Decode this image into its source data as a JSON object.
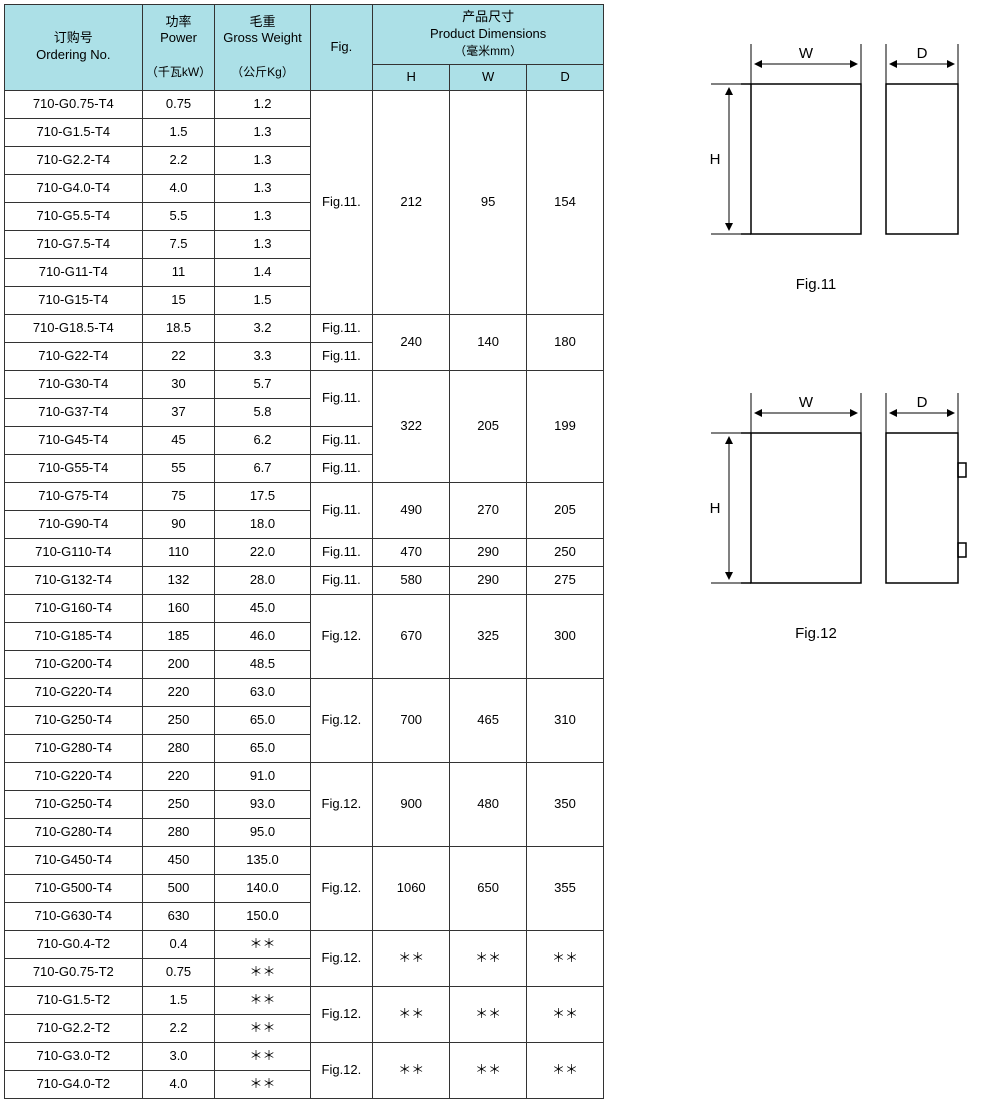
{
  "headers": {
    "ordering": {
      "zh": "订购号",
      "en": "Ordering No."
    },
    "power": {
      "zh": "功率",
      "en": "Power",
      "unit": "（千瓦kW）"
    },
    "gross": {
      "zh": "毛重",
      "en": "Gross Weight",
      "unit": "（公斤Kg）"
    },
    "fig": "Fig.",
    "dims": {
      "zh": "产品尺寸",
      "en": "Product Dimensions",
      "unit": "（毫米mm）"
    },
    "H": "H",
    "W": "W",
    "D": "D"
  },
  "groups": [
    {
      "fig": "Fig.11.",
      "figRow": 8,
      "H": "212",
      "W": "95",
      "D": "154",
      "dimRow": 8,
      "rows": [
        {
          "order": "710-G0.75-T4",
          "power": "0.75",
          "gw": "1.2"
        },
        {
          "order": "710-G1.5-T4",
          "power": "1.5",
          "gw": "1.3"
        },
        {
          "order": "710-G2.2-T4",
          "power": "2.2",
          "gw": "1.3"
        },
        {
          "order": "710-G4.0-T4",
          "power": "4.0",
          "gw": "1.3"
        },
        {
          "order": "710-G5.5-T4",
          "power": "5.5",
          "gw": "1.3"
        },
        {
          "order": "710-G7.5-T4",
          "power": "7.5",
          "gw": "1.3"
        },
        {
          "order": "710-G11-T4",
          "power": "11",
          "gw": "1.4"
        },
        {
          "order": "710-G15-T4",
          "power": "15",
          "gw": "1.5"
        }
      ]
    },
    {
      "H": "240",
      "W": "140",
      "D": "180",
      "dimRow": 2,
      "rows": [
        {
          "order": "710-G18.5-T4",
          "power": "18.5",
          "gw": "3.2",
          "fig": "Fig.11."
        },
        {
          "order": "710-G22-T4",
          "power": "22",
          "gw": "3.3",
          "fig": "Fig.11."
        }
      ]
    },
    {
      "H": "322",
      "W": "205",
      "D": "199",
      "dimRow": 4,
      "rows": [
        {
          "order": "710-G30-T4",
          "power": "30",
          "gw": "5.7",
          "fig": "Fig.11.",
          "figRow": 2
        },
        {
          "order": "710-G37-T4",
          "power": "37",
          "gw": "5.8"
        },
        {
          "order": "710-G45-T4",
          "power": "45",
          "gw": "6.2",
          "fig": "Fig.11."
        },
        {
          "order": "710-G55-T4",
          "power": "55",
          "gw": "6.7",
          "fig": "Fig.11."
        }
      ]
    },
    {
      "fig": "Fig.11.",
      "figRow": 2,
      "H": "490",
      "W": "270",
      "D": "205",
      "dimRow": 2,
      "rows": [
        {
          "order": "710-G75-T4",
          "power": "75",
          "gw": "17.5"
        },
        {
          "order": "710-G90-T4",
          "power": "90",
          "gw": "18.0"
        }
      ]
    },
    {
      "fig": "Fig.11.",
      "figRow": 1,
      "H": "470",
      "W": "290",
      "D": "250",
      "dimRow": 1,
      "rows": [
        {
          "order": "710-G110-T4",
          "power": "110",
          "gw": "22.0"
        }
      ]
    },
    {
      "fig": "Fig.11.",
      "figRow": 1,
      "H": "580",
      "W": "290",
      "D": "275",
      "dimRow": 1,
      "rows": [
        {
          "order": "710-G132-T4",
          "power": "132",
          "gw": "28.0"
        }
      ]
    },
    {
      "fig": "Fig.12.",
      "figRow": 3,
      "H": "670",
      "W": "325",
      "D": "300",
      "dimRow": 3,
      "rows": [
        {
          "order": "710-G160-T4",
          "power": "160",
          "gw": "45.0"
        },
        {
          "order": "710-G185-T4",
          "power": "185",
          "gw": "46.0"
        },
        {
          "order": "710-G200-T4",
          "power": "200",
          "gw": "48.5"
        }
      ]
    },
    {
      "fig": "Fig.12.",
      "figRow": 3,
      "H": "700",
      "W": "465",
      "D": "310",
      "dimRow": 3,
      "rows": [
        {
          "order": "710-G220-T4",
          "power": "220",
          "gw": "63.0"
        },
        {
          "order": "710-G250-T4",
          "power": "250",
          "gw": "65.0"
        },
        {
          "order": "710-G280-T4",
          "power": "280",
          "gw": "65.0"
        }
      ]
    },
    {
      "fig": "Fig.12.",
      "figRow": 3,
      "H": "900",
      "W": "480",
      "D": "350",
      "dimRow": 3,
      "rows": [
        {
          "order": "710-G220-T4",
          "power": "220",
          "gw": "91.0"
        },
        {
          "order": "710-G250-T4",
          "power": "250",
          "gw": "93.0"
        },
        {
          "order": "710-G280-T4",
          "power": "280",
          "gw": "95.0"
        }
      ]
    },
    {
      "fig": "Fig.12.",
      "figRow": 3,
      "H": "1060",
      "W": "650",
      "D": "355",
      "dimRow": 3,
      "rows": [
        {
          "order": "710-G450-T4",
          "power": "450",
          "gw": "135.0"
        },
        {
          "order": "710-G500-T4",
          "power": "500",
          "gw": "140.0"
        },
        {
          "order": "710-G630-T4",
          "power": "630",
          "gw": "150.0"
        }
      ]
    },
    {
      "fig": "Fig.12.",
      "figRow": 2,
      "H": "＊＊",
      "W": "＊＊",
      "D": "＊＊",
      "dimRow": 2,
      "rows": [
        {
          "order": "710-G0.4-T2",
          "power": "0.4",
          "gw": "＊＊"
        },
        {
          "order": "710-G0.75-T2",
          "power": "0.75",
          "gw": "＊＊"
        }
      ]
    },
    {
      "fig": "Fig.12.",
      "figRow": 2,
      "H": "＊＊",
      "W": "＊＊",
      "D": "＊＊",
      "dimRow": 2,
      "rows": [
        {
          "order": "710-G1.5-T2",
          "power": "1.5",
          "gw": "＊＊"
        },
        {
          "order": "710-G2.2-T2",
          "power": "2.2",
          "gw": "＊＊"
        }
      ]
    },
    {
      "fig": "Fig.12.",
      "figRow": 2,
      "H": "＊＊",
      "W": "＊＊",
      "D": "＊＊",
      "dimRow": 2,
      "rows": [
        {
          "order": "710-G3.0-T2",
          "power": "3.0",
          "gw": "＊＊"
        },
        {
          "order": "710-G4.0-T2",
          "power": "4.0",
          "gw": "＊＊"
        }
      ]
    }
  ],
  "diagrams": {
    "fig11": {
      "caption": "Fig.11",
      "labels": {
        "H": "H",
        "W": "W",
        "D": "D"
      }
    },
    "fig12": {
      "caption": "Fig.12",
      "labels": {
        "H": "H",
        "W": "W",
        "D": "D"
      }
    }
  },
  "style": {
    "header_bg": "#ace0e7",
    "border": "#333333",
    "text": "#000000",
    "font_size_body": 13,
    "font_size_caption": 15
  }
}
